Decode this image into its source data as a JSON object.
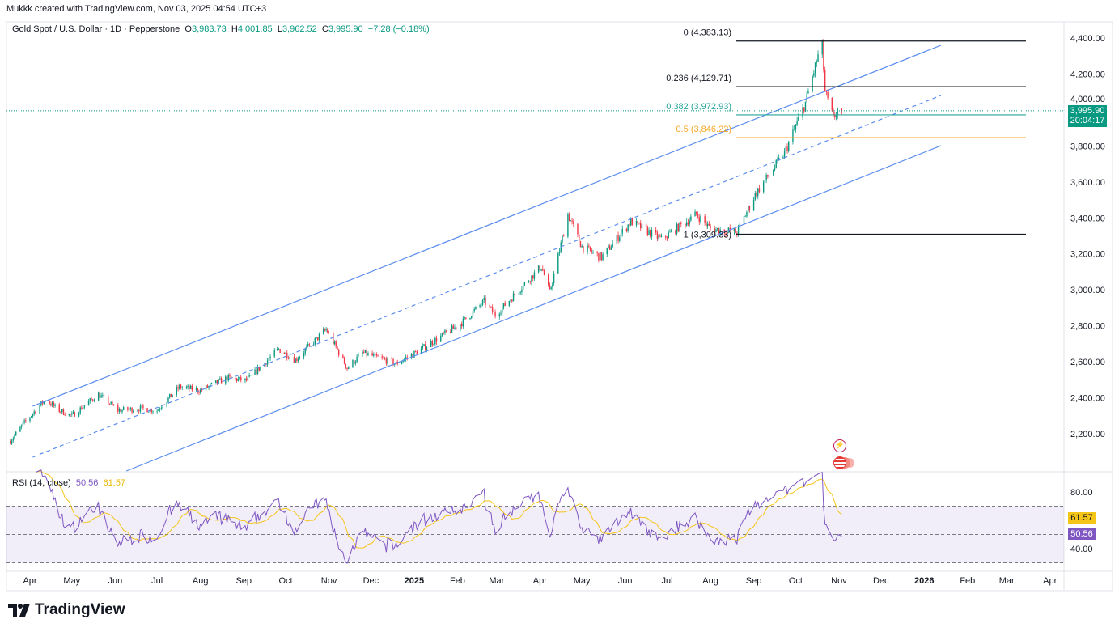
{
  "header": {
    "credit": "Mukkk created with TradingView.com, Nov 03, 2025 04:54 UTC+3",
    "symbol": "Gold Spot / U.S. Dollar · 1D · Pepperstone",
    "open_label": "O",
    "open": "3,983.73",
    "high_label": "H",
    "high": "4,001.85",
    "low_label": "L",
    "low": "3,962.52",
    "close_label": "C",
    "close": "3,995.90",
    "change": "−7.28 (−0.18%)"
  },
  "price_badge": {
    "price": "3,995.90",
    "countdown": "20:04:17"
  },
  "rsi": {
    "label": "RSI (14, close)",
    "value": "50.56",
    "ma_value": "61.57",
    "levels": [
      70,
      50,
      30
    ]
  },
  "colors": {
    "up": "#089981",
    "down": "#f23645",
    "channel": "#5b8def",
    "rsi": "#7e57c2",
    "rsi_ma": "#f5c518",
    "fib_382": "#26a69a",
    "fib_5": "#f5a623"
  },
  "logo": "TradingView",
  "icons": [
    "flash-icon",
    "us-flag-event-icon"
  ],
  "chart_data": {
    "type": "candlestick",
    "title": "Gold Spot / U.S. Dollar · 1D · Pepperstone",
    "price_ticks": [
      "4,400.00",
      "4,200.00",
      "4,000.00",
      "3,800.00",
      "3,600.00",
      "3,400.00",
      "3,200.00",
      "3,000.00",
      "2,800.00",
      "2,600.00",
      "2,400.00",
      "2,200.00"
    ],
    "price_tick_values": [
      4400,
      4200,
      4000,
      3800,
      3600,
      3400,
      3200,
      3000,
      2800,
      2600,
      2400,
      2200
    ],
    "rsi_ticks": [
      "80.00",
      "40.00"
    ],
    "rsi_tick_values": [
      80,
      40
    ],
    "x_ticks": [
      {
        "label": "Apr",
        "date": "2024-04-01"
      },
      {
        "label": "May",
        "date": "2024-05-01"
      },
      {
        "label": "Jun",
        "date": "2024-06-01"
      },
      {
        "label": "Jul",
        "date": "2024-07-01"
      },
      {
        "label": "Aug",
        "date": "2024-08-01"
      },
      {
        "label": "Sep",
        "date": "2024-09-01"
      },
      {
        "label": "Oct",
        "date": "2024-10-01"
      },
      {
        "label": "Nov",
        "date": "2024-11-01"
      },
      {
        "label": "Dec",
        "date": "2024-12-01"
      },
      {
        "label": "2025",
        "date": "2025-01-01",
        "bold": true
      },
      {
        "label": "Feb",
        "date": "2025-02-01"
      },
      {
        "label": "Mar",
        "date": "2025-03-01"
      },
      {
        "label": "Apr",
        "date": "2025-04-01"
      },
      {
        "label": "May",
        "date": "2025-05-01"
      },
      {
        "label": "Jun",
        "date": "2025-06-01"
      },
      {
        "label": "Jul",
        "date": "2025-07-01"
      },
      {
        "label": "Aug",
        "date": "2025-08-01"
      },
      {
        "label": "Sep",
        "date": "2025-09-01"
      },
      {
        "label": "Oct",
        "date": "2025-10-01"
      },
      {
        "label": "Nov",
        "date": "2025-11-01"
      },
      {
        "label": "Dec",
        "date": "2025-12-01"
      },
      {
        "label": "2026",
        "date": "2026-01-01",
        "bold": true
      },
      {
        "label": "Feb",
        "date": "2026-02-01"
      },
      {
        "label": "Mar",
        "date": "2026-03-01"
      },
      {
        "label": "Apr",
        "date": "2026-04-01"
      }
    ],
    "price_path": [
      [
        "2024-03-18",
        2160
      ],
      [
        "2024-03-28",
        2260
      ],
      [
        "2024-04-05",
        2330
      ],
      [
        "2024-04-12",
        2390
      ],
      [
        "2024-04-22",
        2330
      ],
      [
        "2024-05-01",
        2300
      ],
      [
        "2024-05-20",
        2420
      ],
      [
        "2024-06-03",
        2330
      ],
      [
        "2024-06-20",
        2340
      ],
      [
        "2024-07-01",
        2330
      ],
      [
        "2024-07-17",
        2460
      ],
      [
        "2024-08-01",
        2440
      ],
      [
        "2024-08-20",
        2510
      ],
      [
        "2024-09-03",
        2495
      ],
      [
        "2024-09-26",
        2670
      ],
      [
        "2024-10-08",
        2610
      ],
      [
        "2024-10-30",
        2780
      ],
      [
        "2024-11-14",
        2565
      ],
      [
        "2024-11-25",
        2650
      ],
      [
        "2024-12-19",
        2590
      ],
      [
        "2025-01-02",
        2650
      ],
      [
        "2025-02-03",
        2810
      ],
      [
        "2025-02-20",
        2935
      ],
      [
        "2025-02-28",
        2860
      ],
      [
        "2025-04-02",
        3130
      ],
      [
        "2025-04-08",
        2985
      ],
      [
        "2025-04-21",
        3420
      ],
      [
        "2025-05-01",
        3240
      ],
      [
        "2025-05-15",
        3180
      ],
      [
        "2025-06-05",
        3380
      ],
      [
        "2025-06-27",
        3280
      ],
      [
        "2025-07-22",
        3420
      ],
      [
        "2025-08-01",
        3340
      ],
      [
        "2025-08-20",
        3320
      ],
      [
        "2025-09-02",
        3530
      ],
      [
        "2025-09-23",
        3760
      ],
      [
        "2025-10-08",
        4040
      ],
      [
        "2025-10-17",
        4300
      ],
      [
        "2025-10-20",
        4360
      ],
      [
        "2025-10-22",
        4100
      ],
      [
        "2025-10-28",
        3950
      ],
      [
        "2025-10-31",
        4002
      ],
      [
        "2025-11-03",
        3995.9
      ]
    ],
    "channel": {
      "upper": [
        [
          "2024-04-03",
          2353
        ],
        [
          "2026-01-13",
          4360
        ]
      ],
      "middle": [
        [
          "2024-04-03",
          2070
        ],
        [
          "2026-01-13",
          4081
        ]
      ],
      "lower": [
        [
          "2024-06-09",
          1993
        ],
        [
          "2026-01-13",
          3802
        ]
      ]
    },
    "fibonacci": [
      {
        "ratio": "0",
        "price": 4383.13,
        "label": "0 (4,383.13)"
      },
      {
        "ratio": "0.236",
        "price": 4129.71,
        "label": "0.236 (4,129.71)"
      },
      {
        "ratio": "0.382",
        "price": 3972.93,
        "label": "0.382 (3,972.93)"
      },
      {
        "ratio": "0.5",
        "price": 3846.22,
        "label": "0.5 (3,846.22)"
      },
      {
        "ratio": "1",
        "price": 3309.33,
        "label": "1 (3,309.33)"
      }
    ],
    "last_price": 3995.9,
    "rsi_last": 50.56,
    "rsi_ma_last": 61.57
  }
}
